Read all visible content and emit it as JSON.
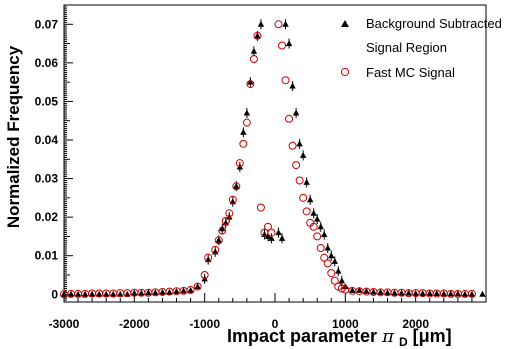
{
  "chart_data": {
    "type": "scatter",
    "xlabel": "Impact parameter π_D [μm]",
    "xlabel_main": "Impact parameter ",
    "xlabel_symbol": "π",
    "xlabel_sub": "D",
    "xlabel_unit": " [μm]",
    "ylabel": "Normalized Frequency",
    "xlim": [
      -3000,
      3000
    ],
    "ylim": [
      -0.002,
      0.075
    ],
    "x_ticks": [
      -3000,
      -2000,
      -1000,
      0,
      1000,
      2000
    ],
    "x_tick_labels": [
      "-3000",
      "-2000",
      "-1000",
      "0",
      "1000",
      "2000"
    ],
    "y_ticks": [
      0,
      0.01,
      0.02,
      0.03,
      0.04,
      0.05,
      0.06,
      0.07
    ],
    "y_tick_labels": [
      "0",
      "0.01",
      "0.02",
      "0.03",
      "0.04",
      "0.05",
      "0.06",
      "0.07"
    ],
    "grid": false,
    "legend_position": "top-right",
    "series": [
      {
        "name": "Background Subtracted Signal Region",
        "legend_lines": [
          "Background Subtracted",
          "Signal Region"
        ],
        "marker": "triangle",
        "color": "#000000",
        "x": [
          -3000,
          -2900,
          -2800,
          -2700,
          -2600,
          -2500,
          -2400,
          -2300,
          -2200,
          -2100,
          -2000,
          -1900,
          -1800,
          -1700,
          -1600,
          -1500,
          -1400,
          -1300,
          -1200,
          -1100,
          -1000,
          -950,
          -850,
          -800,
          -750,
          -700,
          -650,
          -600,
          -550,
          -500,
          -450,
          -400,
          -350,
          -300,
          -250,
          -200,
          -150,
          -100,
          -50,
          50,
          100,
          150,
          200,
          250,
          300,
          350,
          400,
          450,
          500,
          550,
          600,
          650,
          700,
          750,
          800,
          850,
          900,
          950,
          1000,
          1100,
          1200,
          1300,
          1400,
          1500,
          1600,
          1700,
          1800,
          1900,
          2000,
          2100,
          2200,
          2300,
          2400,
          2500,
          2600,
          2700,
          2800,
          2950
        ],
        "y": [
          0.0,
          0.0,
          0.0,
          0.0,
          0.0,
          0.0,
          0.0,
          0.0,
          0.0,
          0.0,
          0.0003,
          0.0003,
          0.0004,
          0.0004,
          0.0005,
          0.0005,
          0.0007,
          0.0009,
          0.001,
          0.002,
          0.004,
          0.009,
          0.011,
          0.014,
          0.017,
          0.0185,
          0.02,
          0.024,
          0.028,
          0.033,
          0.042,
          0.047,
          0.055,
          0.063,
          0.067,
          0.07,
          0.0155,
          0.015,
          0.0145,
          0.016,
          0.0145,
          0.07,
          0.065,
          0.054,
          0.047,
          0.039,
          0.036,
          0.029,
          0.0245,
          0.021,
          0.0195,
          0.0175,
          0.0155,
          0.012,
          0.01,
          0.0085,
          0.006,
          0.0035,
          0.002,
          0.001,
          0.001,
          0.0008,
          0.0006,
          0.0005,
          0.0004,
          0.0003,
          0.0003,
          0.0003,
          0.0002,
          0.0002,
          0.0002,
          0.0002,
          0.0001,
          0.0001,
          0.0001,
          0.0,
          0.0,
          0.0
        ]
      },
      {
        "name": "Fast MC Signal",
        "legend_lines": [
          "Fast MC Signal"
        ],
        "marker": "open-circle",
        "color": "#cc0000",
        "x": [
          -3000,
          -2900,
          -2800,
          -2700,
          -2600,
          -2500,
          -2400,
          -2300,
          -2200,
          -2100,
          -2000,
          -1900,
          -1800,
          -1700,
          -1600,
          -1500,
          -1400,
          -1300,
          -1200,
          -1100,
          -1000,
          -950,
          -850,
          -800,
          -750,
          -700,
          -650,
          -600,
          -550,
          -500,
          -450,
          -400,
          -350,
          -300,
          -250,
          -200,
          -150,
          -100,
          -50,
          50,
          100,
          150,
          200,
          250,
          300,
          350,
          400,
          450,
          500,
          550,
          600,
          650,
          700,
          750,
          800,
          850,
          900,
          950,
          1000,
          1100,
          1200,
          1300,
          1400,
          1500,
          1600,
          1700,
          1800,
          1900,
          2000,
          2100,
          2200,
          2300,
          2400,
          2500,
          2600,
          2700,
          2800
        ],
        "y": [
          0.0,
          0.0001,
          0.0001,
          0.0001,
          0.0002,
          0.0002,
          0.0002,
          0.0002,
          0.0003,
          0.0003,
          0.0004,
          0.0004,
          0.0004,
          0.0005,
          0.0006,
          0.0007,
          0.0008,
          0.0009,
          0.0011,
          0.002,
          0.005,
          0.0095,
          0.0115,
          0.014,
          0.0165,
          0.019,
          0.021,
          0.0245,
          0.028,
          0.034,
          0.039,
          0.0445,
          0.0545,
          0.061,
          0.067,
          0.0225,
          0.016,
          0.0175,
          0.016,
          0.07,
          0.0645,
          0.0555,
          0.0455,
          0.0385,
          0.0335,
          0.0295,
          0.025,
          0.0215,
          0.0185,
          0.0175,
          0.015,
          0.012,
          0.0095,
          0.008,
          0.0055,
          0.0035,
          0.002,
          0.0015,
          0.0012,
          0.0009,
          0.0008,
          0.0007,
          0.0006,
          0.0005,
          0.0005,
          0.0004,
          0.0004,
          0.0003,
          0.0003,
          0.0003,
          0.0002,
          0.0002,
          0.0002,
          0.0001,
          0.0001,
          0.0001,
          0.0001
        ]
      }
    ]
  }
}
